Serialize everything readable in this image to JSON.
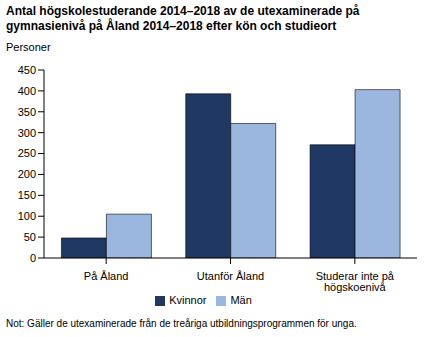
{
  "chart_data": {
    "type": "bar",
    "title": "Antal högskolestuderande 2014–2018 av de utexaminerade på gymnasienivå på Åland 2014–2018 efter kön och studieort",
    "y_label": "Personer",
    "categories": [
      "På Åland",
      "Utanför Åland",
      "Studerar inte på högskoenivå"
    ],
    "series": [
      {
        "name": "Kvinnor",
        "color": "#203864",
        "values": [
          48,
          393,
          271
        ]
      },
      {
        "name": "Män",
        "color": "#9bb7e0",
        "values": [
          105,
          322,
          403
        ]
      }
    ],
    "ylim": [
      0,
      450
    ],
    "yticks": [
      0,
      50,
      100,
      150,
      200,
      250,
      300,
      350,
      400,
      450
    ],
    "grid": false,
    "legend": "bottom",
    "note": "Not: Gäller de utexaminerade från de treåriga utbildningsprogrammen för unga."
  }
}
